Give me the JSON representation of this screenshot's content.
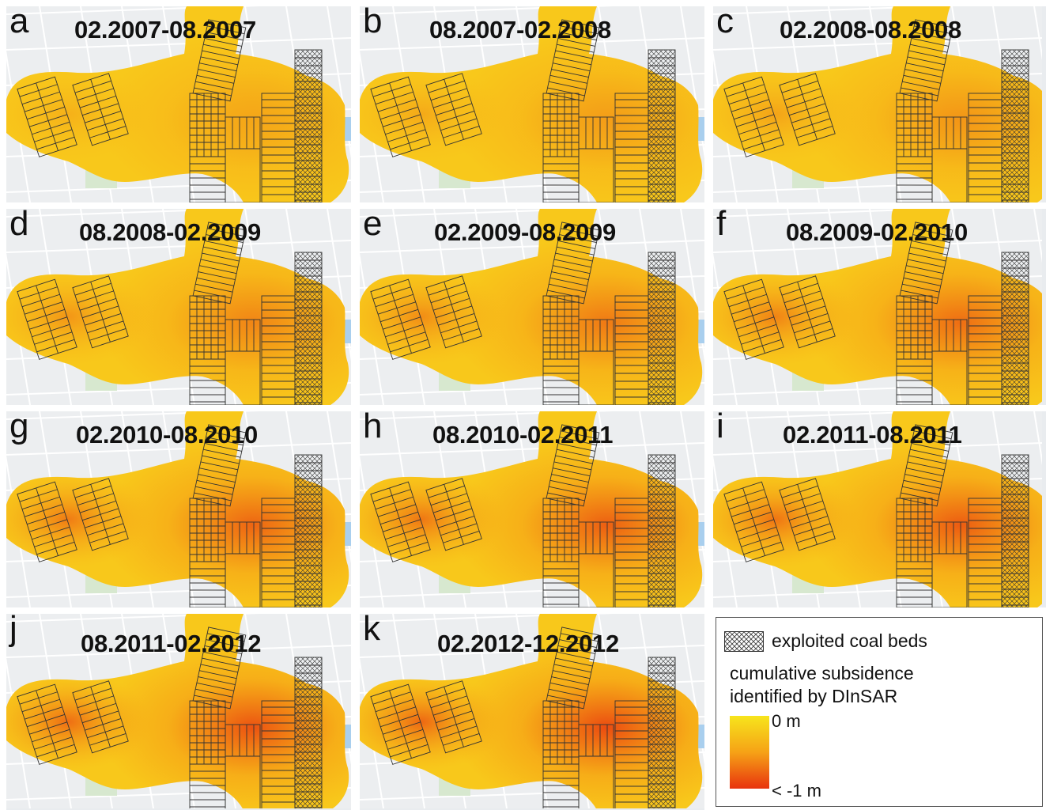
{
  "panels": [
    {
      "letter": "a",
      "period": "02.2007-08.2007",
      "intensity": 0.1
    },
    {
      "letter": "b",
      "period": "08.2007-02.2008",
      "intensity": 0.18
    },
    {
      "letter": "c",
      "period": "02.2008-08.2008",
      "intensity": 0.25
    },
    {
      "letter": "d",
      "period": "08.2008-02.2009",
      "intensity": 0.4
    },
    {
      "letter": "e",
      "period": "02.2009-08.2009",
      "intensity": 0.5
    },
    {
      "letter": "f",
      "period": "08.2009-02.2010",
      "intensity": 0.62
    },
    {
      "letter": "g",
      "period": "02.2010-08.2010",
      "intensity": 0.7
    },
    {
      "letter": "h",
      "period": "08.2010-02.2011",
      "intensity": 0.75
    },
    {
      "letter": "i",
      "period": "02.2011-08.2011",
      "intensity": 0.78
    },
    {
      "letter": "j",
      "period": "08.2011-02.2012",
      "intensity": 0.85
    },
    {
      "letter": "k",
      "period": "02.2012-12.2012",
      "intensity": 0.92
    }
  ],
  "legend": {
    "hatch_label": "exploited coal beds",
    "title_line1": "cumulative subsidence",
    "title_line2": "identified by DInSAR",
    "scale_top": "0 m",
    "scale_bottom": "< -1 m",
    "colors": {
      "zero": "#f7e51c",
      "mid": "#f6a216",
      "max": "#e8330e"
    }
  }
}
